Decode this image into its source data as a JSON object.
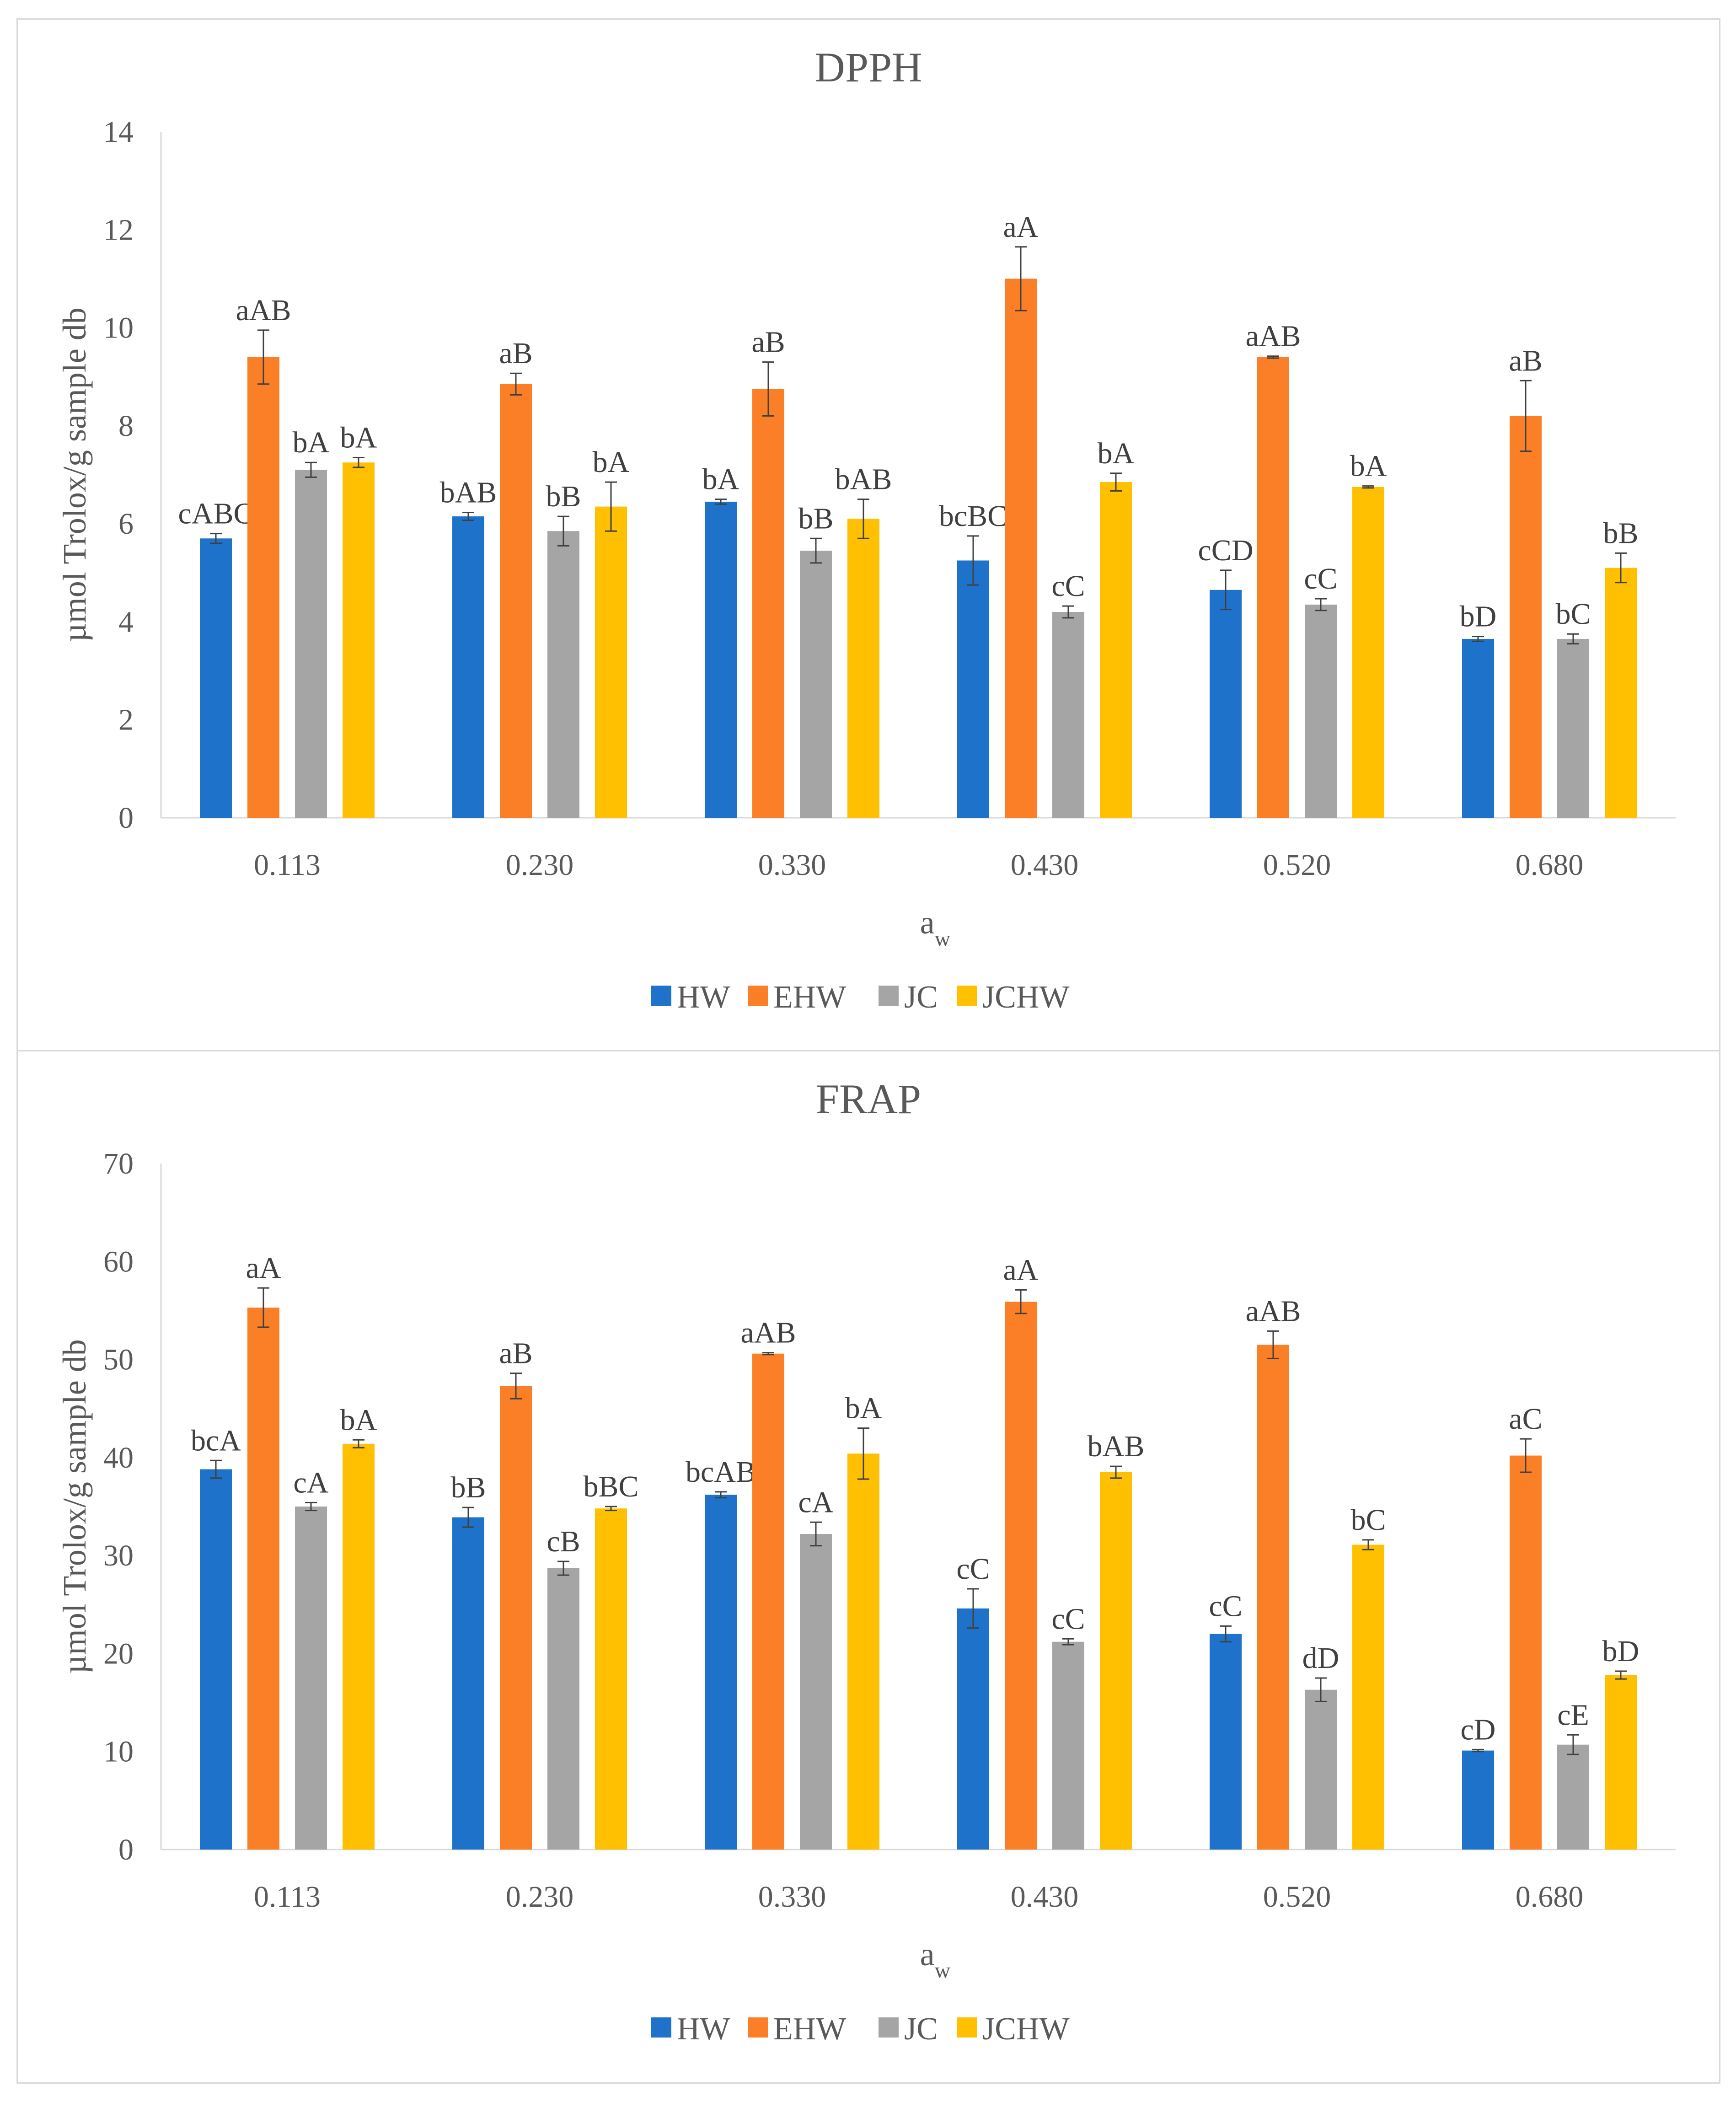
{
  "chart_data": [
    {
      "type": "bar",
      "title": "DPPH",
      "xlabel": "a",
      "xlabel_sub": "w",
      "ylabel": "µmol Trolox/g sample db",
      "ylim": [
        0,
        14
      ],
      "yticks": [
        0,
        2,
        4,
        6,
        8,
        10,
        12,
        14
      ],
      "categories": [
        "0.113",
        "0.230",
        "0.330",
        "0.430",
        "0.520",
        "0.680"
      ],
      "legend_position": "bottom",
      "series": [
        {
          "name": "HW",
          "color": "#1f72c9",
          "values": [
            5.7,
            6.15,
            6.45,
            5.25,
            4.65,
            3.65
          ],
          "errors": [
            0.1,
            0.08,
            0.05,
            0.5,
            0.4,
            0.05
          ],
          "labels": [
            "cABC",
            "bAB",
            "bA",
            "bcBC",
            "cCD",
            "bD"
          ]
        },
        {
          "name": "EHW",
          "color": "#fb7f27",
          "values": [
            9.4,
            8.85,
            8.75,
            11.0,
            9.4,
            8.2
          ],
          "errors": [
            0.55,
            0.22,
            0.55,
            0.65,
            0.02,
            0.72
          ],
          "labels": [
            "aAB",
            "aB",
            "aB",
            "aA",
            "aAB",
            "aB"
          ]
        },
        {
          "name": "JC",
          "color": "#a5a5a5",
          "values": [
            7.1,
            5.85,
            5.45,
            4.2,
            4.35,
            3.65
          ],
          "errors": [
            0.15,
            0.3,
            0.25,
            0.12,
            0.12,
            0.1
          ],
          "labels": [
            "bA",
            "bB",
            "bB",
            "cC",
            "cC",
            "bC"
          ]
        },
        {
          "name": "JCHW",
          "color": "#fec000",
          "values": [
            7.25,
            6.35,
            6.1,
            6.85,
            6.75,
            5.1
          ],
          "errors": [
            0.1,
            0.5,
            0.4,
            0.18,
            0.02,
            0.3
          ],
          "labels": [
            "bA",
            "bA",
            "bAB",
            "bA",
            "bA",
            "bB"
          ]
        }
      ]
    },
    {
      "type": "bar",
      "title": "FRAP",
      "xlabel": "a",
      "xlabel_sub": "w",
      "ylabel": "µmol Trolox/g sample db",
      "ylim": [
        0,
        70
      ],
      "yticks": [
        0,
        10,
        20,
        30,
        40,
        50,
        60,
        70
      ],
      "categories": [
        "0.113",
        "0.230",
        "0.330",
        "0.430",
        "0.520",
        "0.680"
      ],
      "legend_position": "bottom",
      "series": [
        {
          "name": "HW",
          "color": "#1f72c9",
          "values": [
            38.8,
            33.9,
            36.2,
            24.6,
            22.0,
            10.1
          ],
          "errors": [
            0.9,
            1.0,
            0.3,
            2.0,
            0.8,
            0.1
          ],
          "labels": [
            "bcA",
            "bB",
            "bcAB",
            "cC",
            "cC",
            "cD"
          ]
        },
        {
          "name": "EHW",
          "color": "#fb7f27",
          "values": [
            55.3,
            47.3,
            50.6,
            55.9,
            51.5,
            40.2
          ],
          "errors": [
            2.0,
            1.3,
            0.1,
            1.2,
            1.4,
            1.7
          ],
          "labels": [
            "aA",
            "aB",
            "aAB",
            "aA",
            "aAB",
            "aC"
          ]
        },
        {
          "name": "JC",
          "color": "#a5a5a5",
          "values": [
            35.0,
            28.7,
            32.2,
            21.2,
            16.3,
            10.7
          ],
          "errors": [
            0.4,
            0.7,
            1.2,
            0.3,
            1.2,
            1.0
          ],
          "labels": [
            "cA",
            "cB",
            "cA",
            "cC",
            "dD",
            "cE"
          ]
        },
        {
          "name": "JCHW",
          "color": "#fec000",
          "values": [
            41.4,
            34.8,
            40.4,
            38.5,
            31.1,
            17.8
          ],
          "errors": [
            0.4,
            0.2,
            2.6,
            0.6,
            0.5,
            0.4
          ],
          "labels": [
            "bA",
            "bBC",
            "bA",
            "bAB",
            "bC",
            "bD"
          ]
        }
      ]
    }
  ]
}
